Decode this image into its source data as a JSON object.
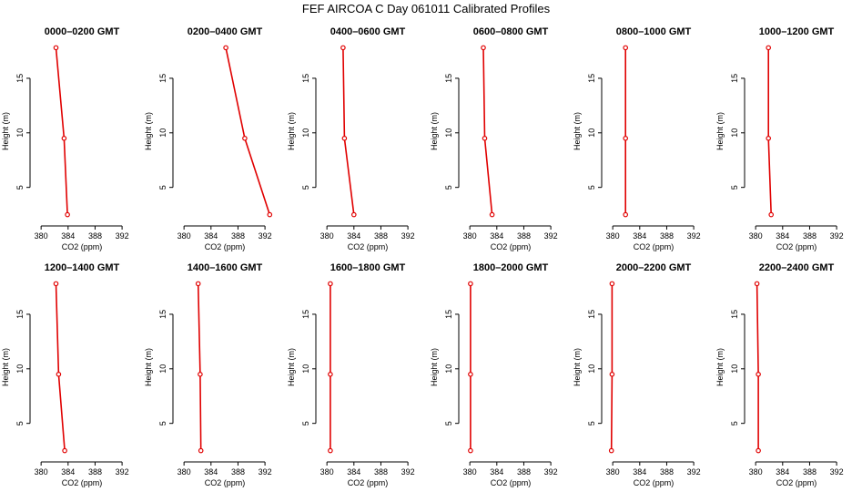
{
  "figure": {
    "title": "FEF AIRCOA C  Day 061011  Calibrated Profiles"
  },
  "chart_data": [
    {
      "type": "line",
      "title": "0000–0200 GMT",
      "xlabel": "CO2 (ppm)",
      "ylabel": "Height (m)",
      "xlim": [
        378.9,
        393.2
      ],
      "ylim": [
        1.8,
        18.5
      ],
      "xticks": [
        380,
        384,
        388,
        392
      ],
      "xtick_labels": [
        "380",
        "384",
        "388",
        "392"
      ],
      "yticks": [
        5,
        10,
        15
      ],
      "ytick_labels": [
        "5",
        "10",
        "15"
      ],
      "series": [
        {
          "x": [
            382.2,
            383.4,
            383.9
          ],
          "y": [
            17.8,
            9.5,
            2.5
          ],
          "color": "#e00000"
        }
      ]
    },
    {
      "type": "line",
      "title": "0200–0400 GMT",
      "xlabel": "CO2 (ppm)",
      "ylabel": "Height (m)",
      "xlim": [
        378.9,
        393.2
      ],
      "ylim": [
        1.8,
        18.5
      ],
      "xticks": [
        380,
        384,
        388,
        392
      ],
      "xtick_labels": [
        "380",
        "384",
        "388",
        "392"
      ],
      "yticks": [
        5,
        10,
        15
      ],
      "ytick_labels": [
        "5",
        "10",
        "15"
      ],
      "series": [
        {
          "x": [
            386.2,
            389.0,
            392.7
          ],
          "y": [
            17.8,
            9.5,
            2.5
          ],
          "color": "#e00000"
        }
      ]
    },
    {
      "type": "line",
      "title": "0400–0600 GMT",
      "xlabel": "CO2 (ppm)",
      "ylabel": "Height (m)",
      "xlim": [
        378.9,
        393.2
      ],
      "ylim": [
        1.8,
        18.5
      ],
      "xticks": [
        380,
        384,
        388,
        392
      ],
      "xtick_labels": [
        "380",
        "384",
        "388",
        "392"
      ],
      "yticks": [
        5,
        10,
        15
      ],
      "ytick_labels": [
        "5",
        "10",
        "15"
      ],
      "series": [
        {
          "x": [
            382.4,
            382.6,
            384.0
          ],
          "y": [
            17.8,
            9.5,
            2.5
          ],
          "color": "#e00000"
        }
      ]
    },
    {
      "type": "line",
      "title": "0600–0800 GMT",
      "xlabel": "CO2 (ppm)",
      "ylabel": "Height (m)",
      "xlim": [
        378.9,
        393.2
      ],
      "ylim": [
        1.8,
        18.5
      ],
      "xticks": [
        380,
        384,
        388,
        392
      ],
      "xtick_labels": [
        "380",
        "384",
        "388",
        "392"
      ],
      "yticks": [
        5,
        10,
        15
      ],
      "ytick_labels": [
        "5",
        "10",
        "15"
      ],
      "series": [
        {
          "x": [
            382.0,
            382.2,
            383.3
          ],
          "y": [
            17.8,
            9.5,
            2.5
          ],
          "color": "#e00000"
        }
      ]
    },
    {
      "type": "line",
      "title": "0800–1000 GMT",
      "xlabel": "CO2 (ppm)",
      "ylabel": "Height (m)",
      "xlim": [
        378.9,
        393.2
      ],
      "ylim": [
        1.8,
        18.5
      ],
      "xticks": [
        380,
        384,
        388,
        392
      ],
      "xtick_labels": [
        "380",
        "384",
        "388",
        "392"
      ],
      "yticks": [
        5,
        10,
        15
      ],
      "ytick_labels": [
        "5",
        "10",
        "15"
      ],
      "series": [
        {
          "x": [
            381.9,
            381.9,
            381.9
          ],
          "y": [
            17.8,
            9.5,
            2.5
          ],
          "color": "#e00000"
        }
      ]
    },
    {
      "type": "line",
      "title": "1000–1200 GMT",
      "xlabel": "CO2 (ppm)",
      "ylabel": "Height (m)",
      "xlim": [
        378.9,
        393.2
      ],
      "ylim": [
        1.8,
        18.5
      ],
      "xticks": [
        380,
        384,
        388,
        392
      ],
      "xtick_labels": [
        "380",
        "384",
        "388",
        "392"
      ],
      "yticks": [
        5,
        10,
        15
      ],
      "ytick_labels": [
        "5",
        "10",
        "15"
      ],
      "series": [
        {
          "x": [
            381.9,
            381.9,
            382.3
          ],
          "y": [
            17.8,
            9.5,
            2.5
          ],
          "color": "#e00000"
        }
      ]
    },
    {
      "type": "line",
      "title": "1200–1400 GMT",
      "xlabel": "CO2 (ppm)",
      "ylabel": "Height (m)",
      "xlim": [
        378.9,
        393.2
      ],
      "ylim": [
        1.8,
        18.5
      ],
      "xticks": [
        380,
        384,
        388,
        392
      ],
      "xtick_labels": [
        "380",
        "384",
        "388",
        "392"
      ],
      "yticks": [
        5,
        10,
        15
      ],
      "ytick_labels": [
        "5",
        "10",
        "15"
      ],
      "series": [
        {
          "x": [
            382.2,
            382.6,
            383.5
          ],
          "y": [
            17.8,
            9.5,
            2.5
          ],
          "color": "#e00000"
        }
      ]
    },
    {
      "type": "line",
      "title": "1400–1600 GMT",
      "xlabel": "CO2 (ppm)",
      "ylabel": "Height (m)",
      "xlim": [
        378.9,
        393.2
      ],
      "ylim": [
        1.8,
        18.5
      ],
      "xticks": [
        380,
        384,
        388,
        392
      ],
      "xtick_labels": [
        "380",
        "384",
        "388",
        "392"
      ],
      "yticks": [
        5,
        10,
        15
      ],
      "ytick_labels": [
        "5",
        "10",
        "15"
      ],
      "series": [
        {
          "x": [
            382.1,
            382.4,
            382.5
          ],
          "y": [
            17.8,
            9.5,
            2.5
          ],
          "color": "#e00000"
        }
      ]
    },
    {
      "type": "line",
      "title": "1600–1800 GMT",
      "xlabel": "CO2 (ppm)",
      "ylabel": "Height (m)",
      "xlim": [
        378.9,
        393.2
      ],
      "ylim": [
        1.8,
        18.5
      ],
      "xticks": [
        380,
        384,
        388,
        392
      ],
      "xtick_labels": [
        "380",
        "384",
        "388",
        "392"
      ],
      "yticks": [
        5,
        10,
        15
      ],
      "ytick_labels": [
        "5",
        "10",
        "15"
      ],
      "series": [
        {
          "x": [
            380.5,
            380.5,
            380.5
          ],
          "y": [
            17.8,
            9.5,
            2.5
          ],
          "color": "#e00000"
        }
      ]
    },
    {
      "type": "line",
      "title": "1800–2000 GMT",
      "xlabel": "CO2 (ppm)",
      "ylabel": "Height (m)",
      "xlim": [
        378.9,
        393.2
      ],
      "ylim": [
        1.8,
        18.5
      ],
      "xticks": [
        380,
        384,
        388,
        392
      ],
      "xtick_labels": [
        "380",
        "384",
        "388",
        "392"
      ],
      "yticks": [
        5,
        10,
        15
      ],
      "ytick_labels": [
        "5",
        "10",
        "15"
      ],
      "series": [
        {
          "x": [
            380.1,
            380.1,
            380.1
          ],
          "y": [
            17.8,
            9.5,
            2.5
          ],
          "color": "#e00000"
        }
      ]
    },
    {
      "type": "line",
      "title": "2000–2200 GMT",
      "xlabel": "CO2 (ppm)",
      "ylabel": "Height (m)",
      "xlim": [
        378.9,
        393.2
      ],
      "ylim": [
        1.8,
        18.5
      ],
      "xticks": [
        380,
        384,
        388,
        392
      ],
      "xtick_labels": [
        "380",
        "384",
        "388",
        "392"
      ],
      "yticks": [
        5,
        10,
        15
      ],
      "ytick_labels": [
        "5",
        "10",
        "15"
      ],
      "series": [
        {
          "x": [
            379.9,
            379.9,
            379.8
          ],
          "y": [
            17.8,
            9.5,
            2.5
          ],
          "color": "#e00000"
        }
      ]
    },
    {
      "type": "line",
      "title": "2200–2400 GMT",
      "xlabel": "CO2 (ppm)",
      "ylabel": "Height (m)",
      "xlim": [
        378.9,
        393.2
      ],
      "ylim": [
        1.8,
        18.5
      ],
      "xticks": [
        380,
        384,
        388,
        392
      ],
      "xtick_labels": [
        "380",
        "384",
        "388",
        "392"
      ],
      "yticks": [
        5,
        10,
        15
      ],
      "ytick_labels": [
        "5",
        "10",
        "15"
      ],
      "series": [
        {
          "x": [
            380.2,
            380.4,
            380.4
          ],
          "y": [
            17.8,
            9.5,
            2.5
          ],
          "color": "#e00000"
        }
      ]
    }
  ]
}
